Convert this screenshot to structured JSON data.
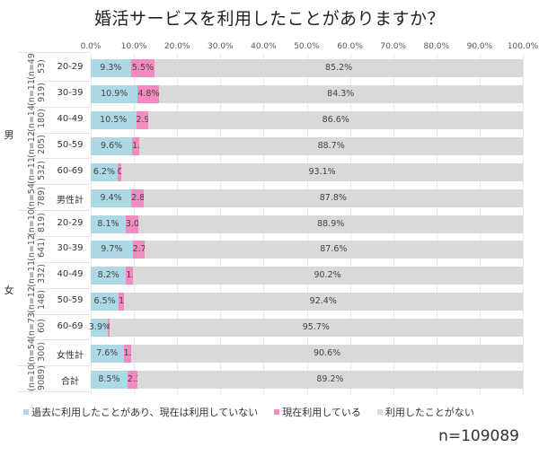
{
  "chart_data": {
    "type": "bar",
    "orientation": "horizontal",
    "stacked": true,
    "title": "婚活サービスを利用したことがありますか？",
    "xlim": [
      0,
      100
    ],
    "x_ticks": [
      "0.0%",
      "10.0%",
      "20.0%",
      "30.0%",
      "40.0%",
      "50.0%",
      "60.0%",
      "70.0%",
      "80.0%",
      "90.0%",
      "100.0%"
    ],
    "legend_position": "bottom",
    "series": [
      {
        "name": "過去に利用したことがあり、現在は利用していない",
        "color": "#add8e6"
      },
      {
        "name": "現在利用している",
        "color": "#f28cc0"
      },
      {
        "name": "利用したことがない",
        "color": "#d9d9d9"
      }
    ],
    "groups": [
      {
        "label": "男",
        "rows": [
          {
            "category": "20-29",
            "n": "(n=4953)",
            "values": [
              9.3,
              5.5,
              85.2
            ]
          },
          {
            "category": "30-39",
            "n": "(n=11919)",
            "values": [
              10.9,
              4.8,
              84.3
            ]
          },
          {
            "category": "40-49",
            "n": "(n=14180)",
            "values": [
              10.5,
              2.9,
              86.6
            ]
          },
          {
            "category": "50-59",
            "n": "(n=12205)",
            "values": [
              9.6,
              1.7,
              88.7
            ]
          },
          {
            "category": "60-69",
            "n": "(n=11532)",
            "values": [
              6.2,
              0.8,
              93.1
            ]
          },
          {
            "category": "男性計",
            "n": "(n=54789)",
            "values": [
              9.4,
              2.8,
              87.8
            ]
          }
        ]
      },
      {
        "label": "女",
        "rows": [
          {
            "category": "20-29",
            "n": "(n=10819)",
            "values": [
              8.1,
              3.0,
              88.9
            ]
          },
          {
            "category": "30-39",
            "n": "(n=12641)",
            "values": [
              9.7,
              2.7,
              87.6
            ]
          },
          {
            "category": "40-49",
            "n": "(n=11332)",
            "values": [
              8.2,
              1.5,
              90.2
            ]
          },
          {
            "category": "50-59",
            "n": "(n=12148)",
            "values": [
              6.5,
              1.1,
              92.4
            ]
          },
          {
            "category": "60-69",
            "n": "(n=7360)",
            "values": [
              3.9,
              0.4,
              95.7
            ]
          },
          {
            "category": "女性計",
            "n": "(n=54300)",
            "values": [
              7.6,
              1.8,
              90.6
            ]
          }
        ]
      },
      {
        "label": "",
        "rows": [
          {
            "category": "合計",
            "n": "(n=109089)",
            "values": [
              8.5,
              2.3,
              89.2
            ]
          }
        ]
      }
    ],
    "annotation": "n=109089"
  }
}
